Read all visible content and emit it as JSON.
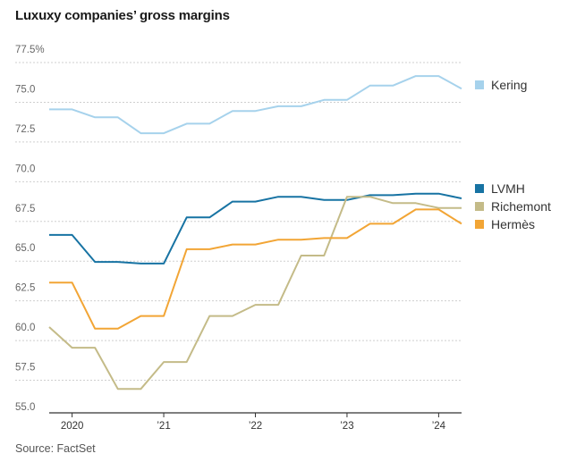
{
  "chart_data": {
    "type": "line",
    "title": "Luxuxy companies’ gross margins",
    "source": "Source: FactSet",
    "xlabel": "",
    "ylabel": "",
    "ylim": [
      55.0,
      77.5
    ],
    "y_ticks": [
      {
        "value": 77.5,
        "label": "77.5%"
      },
      {
        "value": 75.0,
        "label": "75.0"
      },
      {
        "value": 72.5,
        "label": "72.5"
      },
      {
        "value": 70.0,
        "label": "70.0"
      },
      {
        "value": 67.5,
        "label": "67.5"
      },
      {
        "value": 65.0,
        "label": "65.0"
      },
      {
        "value": 62.5,
        "label": "62.5"
      },
      {
        "value": 60.0,
        "label": "60.0"
      },
      {
        "value": 57.5,
        "label": "57.5"
      },
      {
        "value": 55.0,
        "label": "55.0"
      }
    ],
    "x_ticks": [
      {
        "value": 2020.0,
        "label": "2020"
      },
      {
        "value": 2021.0,
        "label": "’21"
      },
      {
        "value": 2022.0,
        "label": "’22"
      },
      {
        "value": 2023.0,
        "label": "’23"
      },
      {
        "value": 2024.0,
        "label": "’24"
      }
    ],
    "xlim": [
      2019.75,
      2024.25
    ],
    "x": [
      2019.75,
      2020.0,
      2020.25,
      2020.5,
      2020.75,
      2021.0,
      2021.25,
      2021.5,
      2021.75,
      2022.0,
      2022.25,
      2022.5,
      2022.75,
      2023.0,
      2023.25,
      2023.5,
      2023.75,
      2024.0,
      2024.25
    ],
    "series": [
      {
        "name": "Kering",
        "color": "#a6d2ec",
        "values": [
          74.1,
          74.1,
          73.6,
          73.6,
          72.6,
          72.6,
          73.2,
          73.2,
          74.0,
          74.0,
          74.3,
          74.3,
          74.7,
          74.7,
          75.6,
          75.6,
          76.2,
          76.2,
          75.4
        ]
      },
      {
        "name": "LVMH",
        "color": "#1773a3",
        "values": [
          66.2,
          66.2,
          64.5,
          64.5,
          64.4,
          64.4,
          67.3,
          67.3,
          68.3,
          68.3,
          68.6,
          68.6,
          68.4,
          68.4,
          68.7,
          68.7,
          68.8,
          68.8,
          68.5
        ]
      },
      {
        "name": "Richemont",
        "color": "#c4bb88",
        "values": [
          60.4,
          59.1,
          59.1,
          56.5,
          56.5,
          58.2,
          58.2,
          61.1,
          61.1,
          61.8,
          61.8,
          64.9,
          64.9,
          68.6,
          68.6,
          68.2,
          68.2,
          67.9,
          67.9
        ]
      },
      {
        "name": "Hermès",
        "color": "#f2a535",
        "values": [
          63.2,
          63.2,
          60.3,
          60.3,
          61.1,
          61.1,
          65.3,
          65.3,
          65.6,
          65.6,
          65.9,
          65.9,
          66.0,
          66.0,
          66.9,
          66.9,
          67.8,
          67.8,
          66.9
        ]
      }
    ],
    "legend": [
      {
        "name": "Kering",
        "color": "#a6d2ec"
      },
      {
        "name": "LVMH",
        "color": "#1773a3"
      },
      {
        "name": "Richemont",
        "color": "#c4bb88"
      },
      {
        "name": "Hermès",
        "color": "#f2a535"
      }
    ],
    "grid": true,
    "legend_placement": "right"
  }
}
